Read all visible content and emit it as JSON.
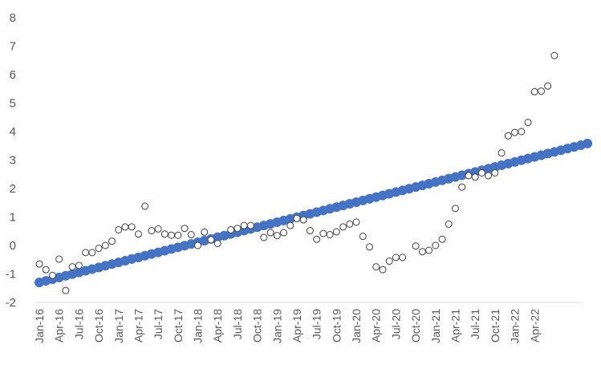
{
  "chart_data": {
    "type": "scatter",
    "title": "",
    "xlabel": "",
    "ylabel": "",
    "ylim": [
      -2,
      8
    ],
    "yticks": [
      -2,
      -1,
      0,
      1,
      2,
      3,
      4,
      5,
      6,
      7,
      8
    ],
    "grid": false,
    "legend": "none",
    "x_tick_labels": [
      "Jan-16",
      "Apr-16",
      "Jul-16",
      "Oct-16",
      "Jan-17",
      "Apr-17",
      "Jul-17",
      "Oct-17",
      "Jan-18",
      "Apr-18",
      "Jul-18",
      "Oct-18",
      "Jan-19",
      "Apr-19",
      "Jul-19",
      "Oct-19",
      "Jan-20",
      "Apr-20",
      "Jul-20",
      "Oct-20",
      "Jan-21",
      "Apr-21",
      "Jul-21",
      "Oct-21",
      "Jan-22",
      "Apr-22"
    ],
    "x": [
      "Jan-16",
      "Feb-16",
      "Mar-16",
      "Apr-16",
      "May-16",
      "Jun-16",
      "Jul-16",
      "Aug-16",
      "Sep-16",
      "Oct-16",
      "Nov-16",
      "Dec-16",
      "Jan-17",
      "Feb-17",
      "Mar-17",
      "Apr-17",
      "May-17",
      "Jun-17",
      "Jul-17",
      "Aug-17",
      "Sep-17",
      "Oct-17",
      "Nov-17",
      "Dec-17",
      "Jan-18",
      "Feb-18",
      "Mar-18",
      "Apr-18",
      "May-18",
      "Jun-18",
      "Jul-18",
      "Aug-18",
      "Sep-18",
      "Oct-18",
      "Nov-18",
      "Dec-18",
      "Jan-19",
      "Feb-19",
      "Mar-19",
      "Apr-19",
      "May-19",
      "Jun-19",
      "Jul-19",
      "Aug-19",
      "Sep-19",
      "Oct-19",
      "Nov-19",
      "Dec-19",
      "Jan-20",
      "Feb-20",
      "Mar-20",
      "Apr-20",
      "May-20",
      "Jun-20",
      "Jul-20",
      "Aug-20",
      "Sep-20",
      "Oct-20",
      "Nov-20",
      "Dec-20",
      "Jan-21",
      "Feb-21",
      "Mar-21",
      "Apr-21",
      "May-21",
      "Jun-21",
      "Jul-21",
      "Aug-21",
      "Sep-21",
      "Oct-21",
      "Nov-21",
      "Dec-21",
      "Jan-22",
      "Feb-22",
      "Mar-22",
      "Apr-22",
      "May-22",
      "Jun-22",
      "Jul-22",
      "Aug-22",
      "Sep-22",
      "Oct-22",
      "Nov-22",
      "Dec-22"
    ],
    "series": [
      {
        "style": "hollow-circle",
        "color": "#404040",
        "values": [
          -0.65,
          -0.85,
          -1.05,
          -0.48,
          -1.58,
          -0.75,
          -0.7,
          -0.25,
          -0.25,
          -0.1,
          0.0,
          0.15,
          0.55,
          0.65,
          0.65,
          0.4,
          1.38,
          0.52,
          0.58,
          0.4,
          0.36,
          0.36,
          0.6,
          0.38,
          0.0,
          0.47,
          0.2,
          0.07,
          null,
          0.55,
          0.6,
          0.7,
          0.7,
          null,
          0.28,
          0.45,
          0.35,
          0.45,
          0.7,
          0.95,
          0.9,
          0.52,
          0.22,
          0.42,
          0.38,
          0.48,
          0.65,
          0.75,
          0.82,
          0.32,
          -0.05,
          -0.75,
          -0.85,
          -0.55,
          -0.42,
          -0.42,
          null,
          -0.02,
          -0.22,
          -0.17,
          0.0,
          0.22,
          0.75,
          1.3,
          2.05,
          2.45,
          2.4,
          2.55,
          2.45,
          2.55,
          3.25,
          3.85,
          3.97,
          4.0,
          4.32,
          5.4,
          5.42,
          5.6,
          6.67,
          null,
          null,
          null,
          null,
          null
        ]
      },
      {
        "style": "filled-circle",
        "color": "#4472c4",
        "trend": {
          "start": -1.3,
          "step": 0.0588
        }
      }
    ]
  }
}
